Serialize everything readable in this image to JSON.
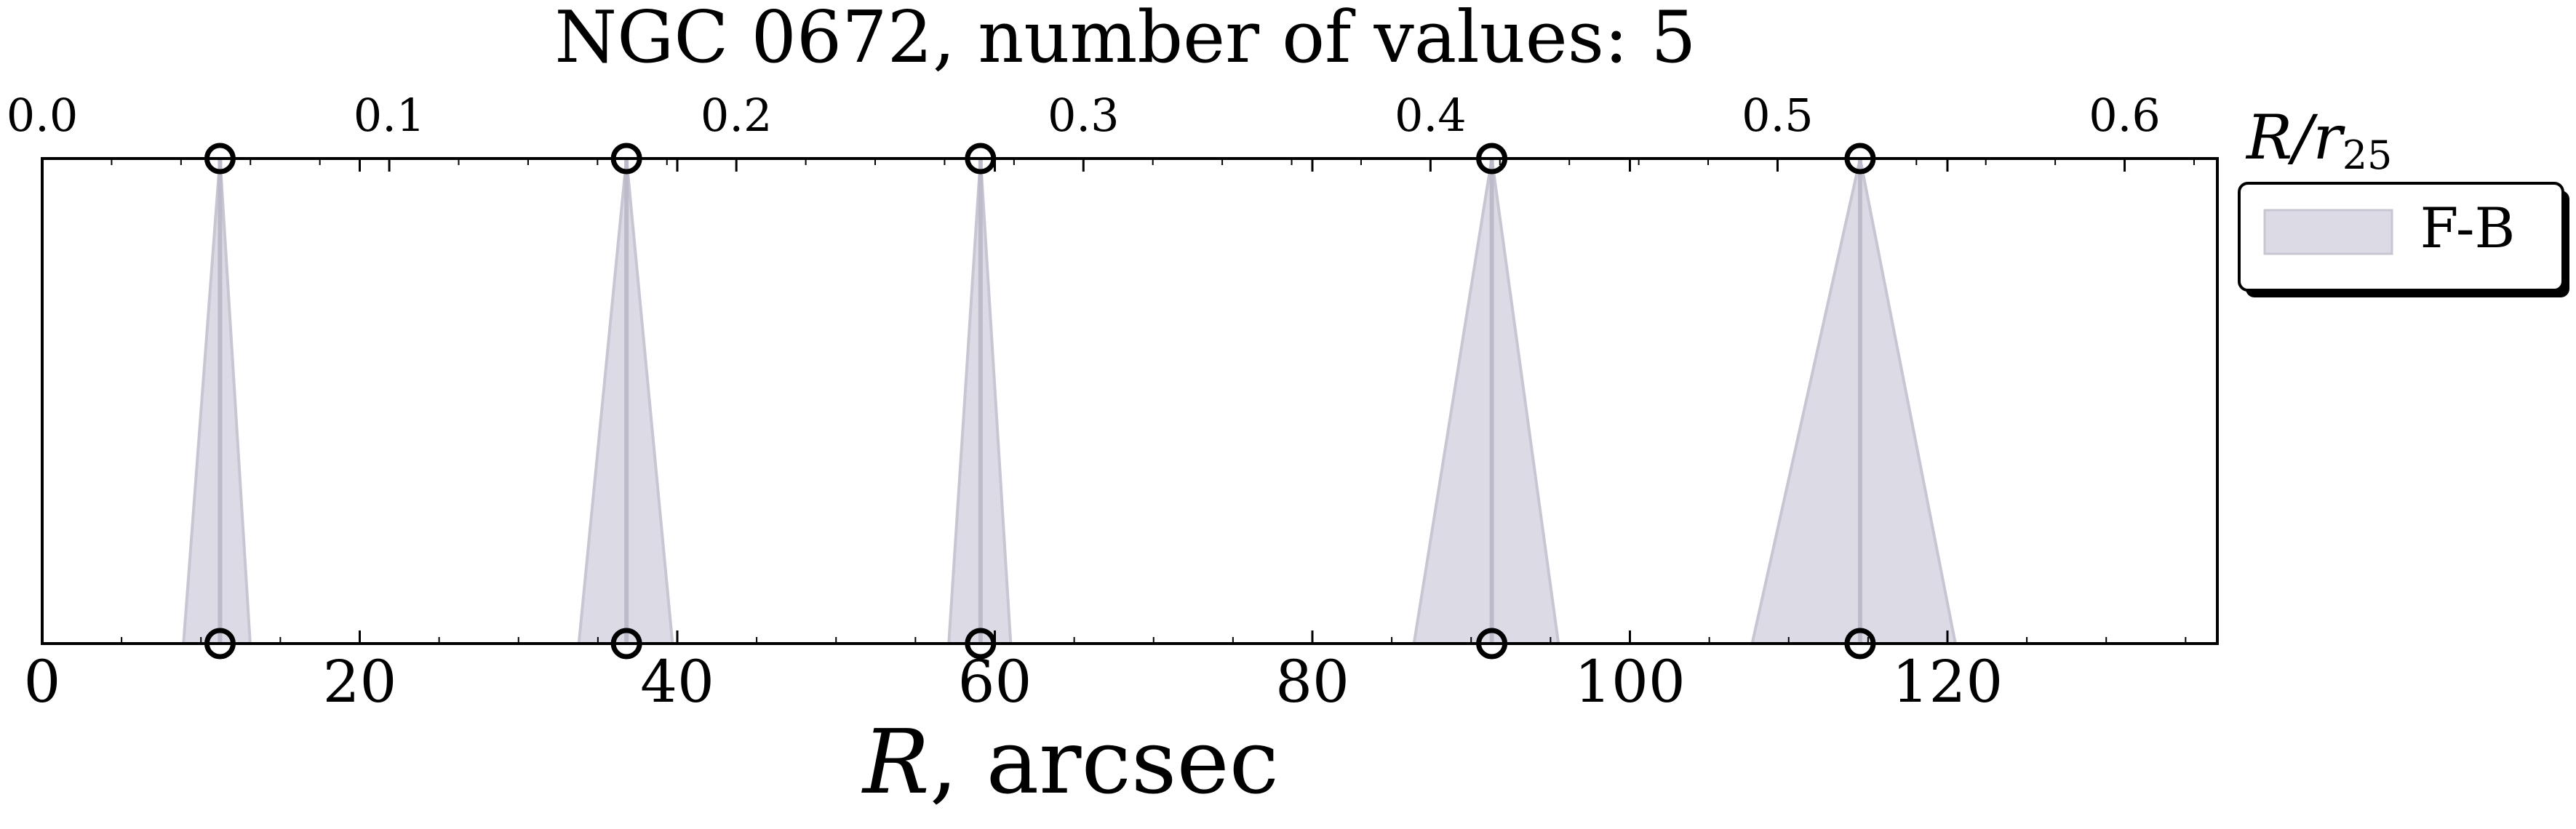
{
  "chart_data": {
    "type": "scatter",
    "title": "NGC 0672, number of values: 5",
    "xlabel_italic": "R",
    "xlabel_rest": ", arcsec",
    "top_axis_label_main": "R/r",
    "top_axis_label_sub": "25",
    "xlim": [
      0,
      137
    ],
    "xticks": [
      0,
      20,
      40,
      60,
      80,
      100,
      120
    ],
    "xtick_labels": [
      "0",
      "20",
      "40",
      "60",
      "80",
      "100",
      "120"
    ],
    "top_axis": {
      "scale_arcsec_per_unit": 218.6,
      "ticks": [
        0.0,
        0.1,
        0.2,
        0.3,
        0.4,
        0.5,
        0.6
      ],
      "tick_labels": [
        "0.0",
        "0.1",
        "0.2",
        "0.3",
        "0.4",
        "0.5",
        "0.6"
      ]
    },
    "grid": false,
    "legend": {
      "position": "outside-top-right",
      "entries": [
        {
          "label": "F-B",
          "color": "#dcdae4"
        }
      ]
    },
    "series": [
      {
        "name": "F-B",
        "points": [
          {
            "x": 11.2,
            "lo": 8.9,
            "hi": 13.1
          },
          {
            "x": 36.8,
            "lo": 33.8,
            "hi": 39.7
          },
          {
            "x": 59.1,
            "lo": 57.1,
            "hi": 61.0
          },
          {
            "x": 91.3,
            "lo": 86.4,
            "hi": 95.5
          },
          {
            "x": 114.5,
            "lo": 107.7,
            "hi": 120.5
          }
        ]
      }
    ],
    "colors": {
      "fill": "#dcdae4",
      "edge": "#c8c6d2",
      "center_line": "#bdbbc9",
      "marker": "#000000",
      "frame": "#000000"
    }
  }
}
